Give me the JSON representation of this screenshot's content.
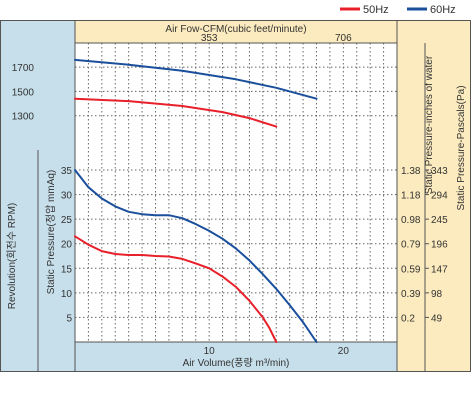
{
  "chart_data": {
    "type": "line",
    "legend": {
      "position": "top-right",
      "items": [
        {
          "label": "50Hz",
          "color": "#e8202a"
        },
        {
          "label": "60Hz",
          "color": "#1a4f9c"
        }
      ]
    },
    "axes": {
      "top_x": {
        "label": "Air Fow-CFM(cubic feet/minute)",
        "ticks": [
          "353",
          "706"
        ]
      },
      "bottom_x": {
        "label": "Air Volume(풍량 m³/min)",
        "ticks": [
          "10",
          "20"
        ],
        "range": [
          0,
          24
        ]
      },
      "left_rpm": {
        "label": "Revolution(회전수 RPM)",
        "ticks": [
          "1700",
          "1500",
          "1300"
        ],
        "range": [
          1100,
          1800
        ]
      },
      "left_pressure": {
        "label": "Static Pressure(정압 mmAq)",
        "ticks": [
          "35",
          "30",
          "25",
          "20",
          "15",
          "10",
          "5"
        ],
        "range": [
          0,
          35
        ]
      },
      "right_inches": {
        "label": "Static Pressure-inches of water",
        "ticks": [
          "1.38",
          "1.18",
          "0.98",
          "0.79",
          "0.59",
          "0.39",
          "0.2"
        ]
      },
      "right_pascal": {
        "label": "Static Pressure-Pascals(Pa)",
        "ticks": [
          "343",
          "294",
          "245",
          "196",
          "147",
          "98",
          "49"
        ]
      }
    },
    "grid": true,
    "series": [
      {
        "name": "50Hz",
        "kind": "rpm",
        "color": "#e8202a",
        "x": [
          0,
          4,
          8,
          11,
          13,
          15
        ],
        "y": [
          1440,
          1420,
          1380,
          1330,
          1280,
          1210
        ]
      },
      {
        "name": "60Hz",
        "kind": "rpm",
        "color": "#1a4f9c",
        "x": [
          0,
          4,
          8,
          12,
          15,
          18
        ],
        "y": [
          1760,
          1720,
          1670,
          1600,
          1530,
          1440
        ]
      },
      {
        "name": "50Hz",
        "kind": "pressure",
        "color": "#e8202a",
        "x": [
          0,
          1,
          2,
          3,
          4,
          5,
          6,
          7,
          8,
          9,
          10,
          11,
          12,
          13,
          14,
          14.5,
          15
        ],
        "y": [
          21.5,
          19.8,
          18.5,
          17.9,
          17.7,
          17.7,
          17.5,
          17.4,
          16.9,
          16.0,
          15.0,
          13.3,
          11.2,
          8.4,
          5.0,
          2.8,
          0
        ]
      },
      {
        "name": "60Hz",
        "kind": "pressure",
        "color": "#1a4f9c",
        "x": [
          0,
          1,
          2,
          3,
          4,
          5,
          6,
          7,
          8,
          9,
          10,
          11,
          12,
          13,
          14,
          15,
          16,
          17,
          18
        ],
        "y": [
          35,
          31.5,
          29.2,
          27.6,
          26.5,
          26.0,
          25.8,
          25.8,
          25.2,
          24.0,
          22.6,
          21.0,
          19.0,
          16.6,
          13.8,
          10.8,
          7.5,
          4.0,
          0
        ]
      }
    ]
  },
  "colors": {
    "panel_blue": "#c7dfea",
    "panel_yellow": "#fcebbe",
    "grid": "#666666",
    "frame": "#555555"
  }
}
